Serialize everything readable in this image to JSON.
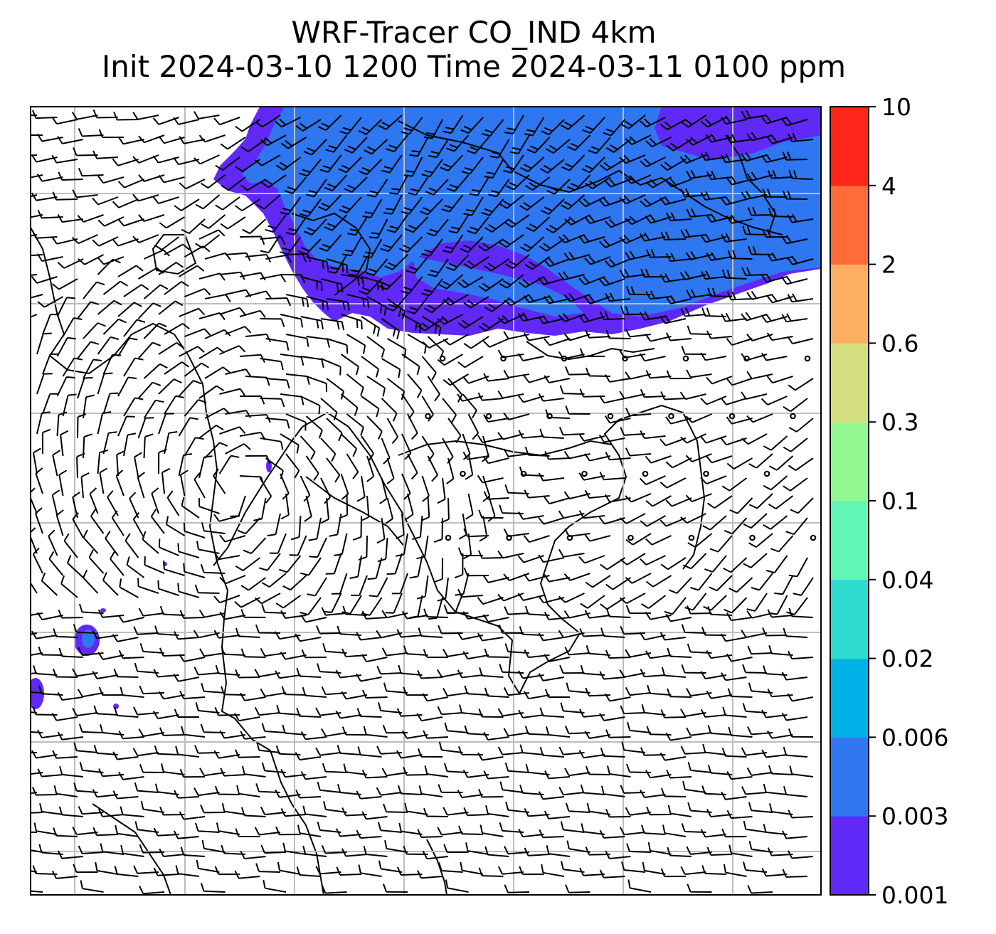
{
  "title": {
    "line1": "WRF-Tracer CO_IND 4km",
    "line2": "Init 2024-03-10 1200 Time 2024-03-11 0100 ppm"
  },
  "colorbar": {
    "levels": [
      "0.001",
      "0.003",
      "0.006",
      "0.02",
      "0.04",
      "0.1",
      "0.3",
      "0.6",
      "2",
      "4",
      "10"
    ],
    "colors": [
      "#6129f7",
      "#2f77f0",
      "#00b2e7",
      "#2fddd0",
      "#62f6b5",
      "#93f892",
      "#d3df7e",
      "#fdae60",
      "#ff6c3a",
      "#ff2519"
    ]
  },
  "map": {
    "land_background": "#ffffff",
    "gridline_color": "#bdbdbd",
    "coastline_color": "#000000",
    "barb_color": "#000000",
    "plume_colors": {
      "outer": "#6129f7",
      "inner": "#2f77f0"
    }
  }
}
